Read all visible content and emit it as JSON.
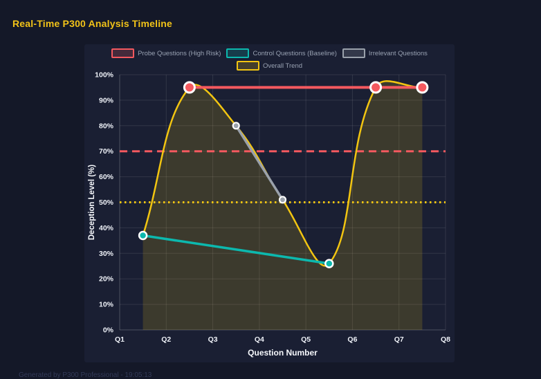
{
  "page": {
    "footer": "Generated by P300 Professional - 19:05:13"
  },
  "colors": {
    "page_bg": "#141828",
    "panel_bg": "#1a1f33",
    "title": "#f2c318",
    "grid": "rgba(255,255,255,0.10)",
    "axis_line": "rgba(255,255,255,0.22)",
    "tick_text": "#eef1f7",
    "axis_title_text": "#f6f8fc",
    "legend_text": "#99a2b3",
    "footer_text": "#333a58",
    "marker_ring": "#ffffff"
  },
  "chart_data": {
    "type": "line",
    "title": "Real-Time P300 Analysis Timeline",
    "xlabel": "Question Number",
    "ylabel": "Deception Level (%)",
    "xlim": [
      1,
      8
    ],
    "ylim": [
      0,
      100
    ],
    "grid": true,
    "legend_position": "top",
    "x_ticks": [
      {
        "value": 1,
        "label": "Q1"
      },
      {
        "value": 2,
        "label": "Q2"
      },
      {
        "value": 3,
        "label": "Q3"
      },
      {
        "value": 4,
        "label": "Q4"
      },
      {
        "value": 5,
        "label": "Q5"
      },
      {
        "value": 6,
        "label": "Q6"
      },
      {
        "value": 7,
        "label": "Q7"
      },
      {
        "value": 8,
        "label": "Q8"
      }
    ],
    "y_ticks": [
      {
        "value": 0,
        "label": "0%"
      },
      {
        "value": 10,
        "label": "10%"
      },
      {
        "value": 20,
        "label": "20%"
      },
      {
        "value": 30,
        "label": "30%"
      },
      {
        "value": 40,
        "label": "40%"
      },
      {
        "value": 50,
        "label": "50%"
      },
      {
        "value": 60,
        "label": "60%"
      },
      {
        "value": 70,
        "label": "70%"
      },
      {
        "value": 80,
        "label": "80%"
      },
      {
        "value": 90,
        "label": "90%"
      },
      {
        "value": 100,
        "label": "100%"
      }
    ],
    "series": [
      {
        "name": "Probe Questions (High Risk)",
        "color": "#f4595f",
        "smooth": false,
        "area": false,
        "markers": true,
        "points": [
          [
            2.5,
            95
          ],
          [
            6.5,
            95
          ],
          [
            7.5,
            95
          ]
        ]
      },
      {
        "name": "Control Questions (Baseline)",
        "color": "#0cb8ae",
        "smooth": false,
        "area": false,
        "markers": true,
        "points": [
          [
            1.5,
            37
          ],
          [
            5.5,
            26
          ]
        ]
      },
      {
        "name": "Irrelevant Questions",
        "color": "#9aa1ab",
        "smooth": false,
        "area": false,
        "markers": true,
        "points": [
          [
            3.5,
            80
          ],
          [
            4.5,
            51
          ]
        ]
      },
      {
        "name": "Overall Trend",
        "color": "#f2c511",
        "smooth": true,
        "area": true,
        "markers": false,
        "points": [
          [
            1.5,
            37
          ],
          [
            2.5,
            95
          ],
          [
            3.5,
            80
          ],
          [
            4.5,
            51
          ],
          [
            5.5,
            26
          ],
          [
            6.5,
            95
          ],
          [
            7.5,
            95
          ]
        ]
      }
    ],
    "thresholds": [
      {
        "value": 70,
        "color": "#f4595f",
        "style": "dashed"
      },
      {
        "value": 50,
        "color": "#f2c511",
        "style": "dotted"
      }
    ]
  },
  "legend": {
    "rows": [
      [
        0,
        1,
        2
      ],
      [
        3
      ]
    ]
  }
}
